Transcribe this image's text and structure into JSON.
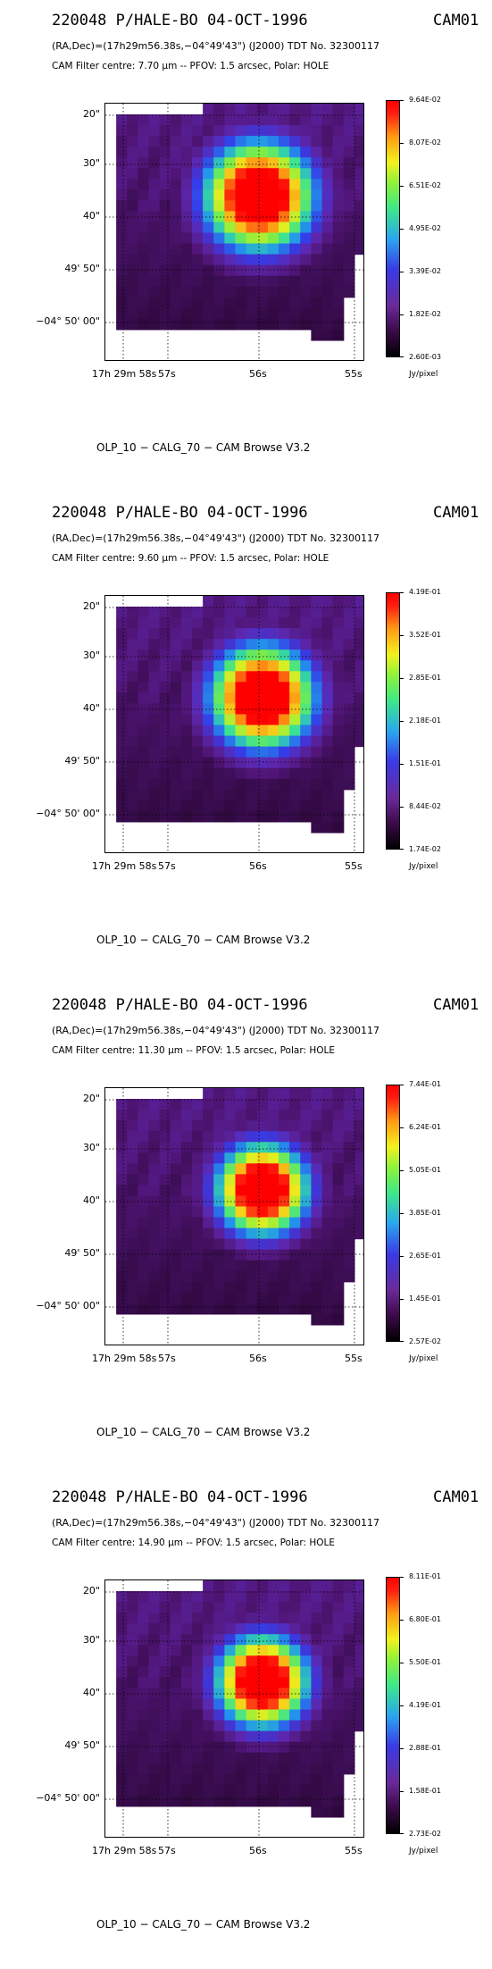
{
  "panels": [
    {
      "title": "220048 P/HALE-BO 04-OCT-1996",
      "instrument": "CAM01",
      "coords": "(RA,Dec)=(17h29m56.38s,−04°49'43\") (J2000) TDT No. 32300117",
      "filter": "CAM  Filter  centre:  7.70 μm --   PFOV:  1.5 arcsec, Polar: HOLE",
      "footer": "OLP_10    − CALG_70   − CAM Browse V3.2",
      "colorbar_labels": [
        "9.64E-02",
        "8.07E-02",
        "6.51E-02",
        "4.95E-02",
        "3.39E-02",
        "1.82E-02",
        "2.60E-03"
      ],
      "unit": "Jy/pixel"
    },
    {
      "title": "220048 P/HALE-BO 04-OCT-1996",
      "instrument": "CAM01",
      "coords": "(RA,Dec)=(17h29m56.38s,−04°49'43\") (J2000) TDT No. 32300117",
      "filter": "CAM  Filter  centre:  9.60 μm --   PFOV:  1.5 arcsec, Polar: HOLE",
      "footer": "OLP_10    − CALG_70   − CAM Browse V3.2",
      "colorbar_labels": [
        "4.19E-01",
        "3.52E-01",
        "2.85E-01",
        "2.18E-01",
        "1.51E-01",
        "8.44E-02",
        "1.74E-02"
      ],
      "unit": "Jy/pixel"
    },
    {
      "title": "220048 P/HALE-BO 04-OCT-1996",
      "instrument": "CAM01",
      "coords": "(RA,Dec)=(17h29m56.38s,−04°49'43\") (J2000) TDT No. 32300117",
      "filter": "CAM  Filter  centre: 11.30 μm --   PFOV:  1.5 arcsec, Polar: HOLE",
      "footer": "OLP_10    − CALG_70   − CAM Browse V3.2",
      "colorbar_labels": [
        "7.44E-01",
        "6.24E-01",
        "5.05E-01",
        "3.85E-01",
        "2.65E-01",
        "1.45E-01",
        "2.57E-02"
      ],
      "unit": "Jy/pixel"
    },
    {
      "title": "220048 P/HALE-BO 04-OCT-1996",
      "instrument": "CAM01",
      "coords": "(RA,Dec)=(17h29m56.38s,−04°49'43\") (J2000) TDT No. 32300117",
      "filter": "CAM  Filter  centre: 14.90 μm --   PFOV:  1.5 arcsec, Polar: HOLE",
      "footer": "OLP_10    − CALG_70   − CAM Browse V3.2",
      "colorbar_labels": [
        "8.11E-01",
        "6.80E-01",
        "5.50E-01",
        "4.19E-01",
        "2.88E-01",
        "1.58E-01",
        "2.73E-02"
      ],
      "unit": "Jy/pixel"
    }
  ],
  "axes": {
    "y_ticks": [
      "20\"",
      "30\"",
      "40\"",
      "49' 50\"",
      "−04° 50' 00\""
    ],
    "x_ticks": [
      "17h 29m 58s",
      "57s",
      "56s",
      "55s"
    ]
  },
  "chart_data": [
    {
      "type": "heatmap",
      "title": "220048 P/HALE-BO 04-OCT-1996",
      "filter_um": 7.7,
      "zlim": [
        0.0026,
        0.0964
      ],
      "unit": "Jy/pixel",
      "colorbar_ticks": [
        0.0964,
        0.0807,
        0.0651,
        0.0495,
        0.0339,
        0.0182,
        0.0026
      ],
      "source_peak_position": {
        "ra": "17h29m56.1s",
        "dec": "-04d49'37\""
      },
      "grid": true
    },
    {
      "type": "heatmap",
      "title": "220048 P/HALE-BO 04-OCT-1996",
      "filter_um": 9.6,
      "zlim": [
        0.0174,
        0.419
      ],
      "unit": "Jy/pixel",
      "colorbar_ticks": [
        0.419,
        0.352,
        0.285,
        0.218,
        0.151,
        0.0844,
        0.0174
      ],
      "source_peak_position": {
        "ra": "17h29m56.1s",
        "dec": "-04d49'37\""
      },
      "grid": true
    },
    {
      "type": "heatmap",
      "title": "220048 P/HALE-BO 04-OCT-1996",
      "filter_um": 11.3,
      "zlim": [
        0.0257,
        0.744
      ],
      "unit": "Jy/pixel",
      "colorbar_ticks": [
        0.744,
        0.624,
        0.505,
        0.385,
        0.265,
        0.145,
        0.0257
      ],
      "source_peak_position": {
        "ra": "17h29m56.1s",
        "dec": "-04d49'37\""
      },
      "grid": true
    },
    {
      "type": "heatmap",
      "title": "220048 P/HALE-BO 04-OCT-1996",
      "filter_um": 14.9,
      "zlim": [
        0.0273,
        0.811
      ],
      "unit": "Jy/pixel",
      "colorbar_ticks": [
        0.811,
        0.68,
        0.55,
        0.419,
        0.288,
        0.158,
        0.0273
      ],
      "source_peak_position": {
        "ra": "17h29m56.1s",
        "dec": "-04d49'37\""
      },
      "grid": true
    }
  ]
}
